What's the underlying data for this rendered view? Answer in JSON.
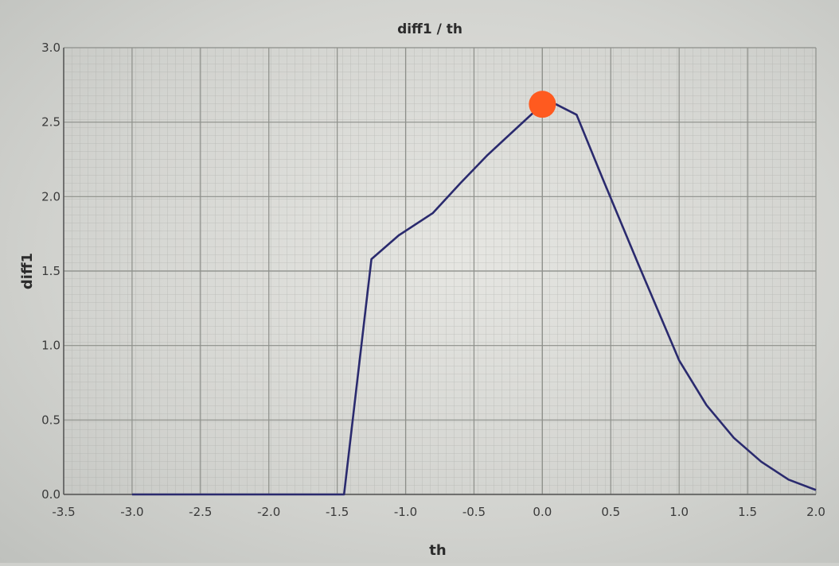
{
  "chart_data": {
    "type": "line",
    "title": "diff1 / th",
    "xlabel": "th",
    "ylabel": "diff1",
    "xlim": [
      -3.5,
      2.0
    ],
    "ylim": [
      0.0,
      3.0
    ],
    "x_ticks": [
      "-3.5",
      "-3.0",
      "-2.5",
      "-2.0",
      "-1.5",
      "-1.0",
      "-0.5",
      "0.0",
      "0.5",
      "1.0",
      "1.5",
      "2.0"
    ],
    "y_ticks": [
      "0.0",
      "0.5",
      "1.0",
      "1.5",
      "2.0",
      "2.5",
      "3.0"
    ],
    "grid": true,
    "line_color": "#2a2a6e",
    "marker_color": "#ff5a1f",
    "series": [
      {
        "x": [
          -3.0,
          -2.5,
          -2.0,
          -1.6,
          -1.45,
          -1.25,
          -1.05,
          -0.8,
          -0.6,
          -0.4,
          -0.2,
          0.0,
          0.1,
          0.25,
          0.45,
          0.7,
          1.0,
          1.2,
          1.4,
          1.6,
          1.8,
          2.0
        ],
        "y": [
          0.0,
          0.0,
          0.0,
          0.0,
          0.0,
          1.58,
          1.74,
          1.89,
          2.09,
          2.28,
          2.45,
          2.62,
          2.62,
          2.55,
          2.1,
          1.55,
          0.9,
          0.6,
          0.38,
          0.22,
          0.1,
          0.03
        ]
      }
    ],
    "highlight_point": {
      "x": 0.0,
      "y": 2.62
    }
  }
}
